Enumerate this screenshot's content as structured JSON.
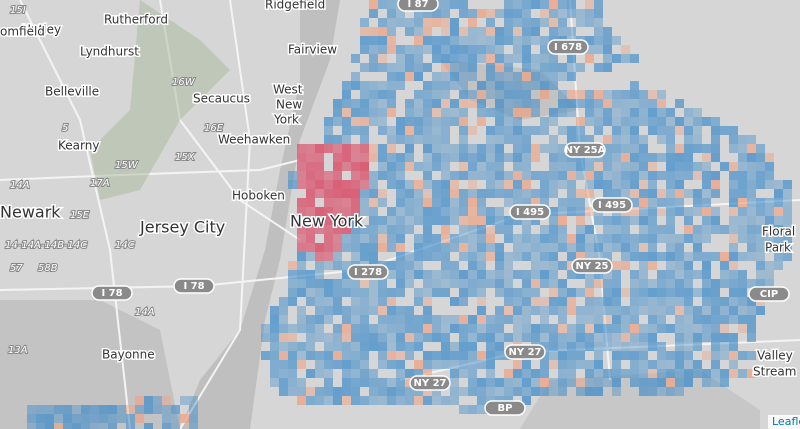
{
  "places": [
    "Nutley",
    "Rutherford",
    "Ridgefield",
    "omfield",
    "Lyndhurst",
    "Belleville",
    "Fairview",
    "Secaucus",
    "West",
    "New",
    "York",
    "Kearny",
    "Weehawken",
    "Newark",
    "Jersey City",
    "Hoboken",
    "New York",
    "Floral",
    "Park",
    "Bayonne",
    "Valley",
    "Stream"
  ],
  "highways": [
    "I 87",
    "I 678",
    "NY 25A",
    "I 495",
    "I 495",
    "I 278",
    "NY 25",
    "I 78",
    "I 78",
    "CIP",
    "NY 27",
    "NY 27",
    "BP"
  ],
  "exits": [
    "15I",
    "16W",
    "16E",
    "15X",
    "15W",
    "17A",
    "14A",
    "15E",
    "14-14A-14B-14C",
    "14C",
    "57",
    "58B",
    "14A",
    "13A",
    "5"
  ],
  "attribution": "Leaflet"
}
